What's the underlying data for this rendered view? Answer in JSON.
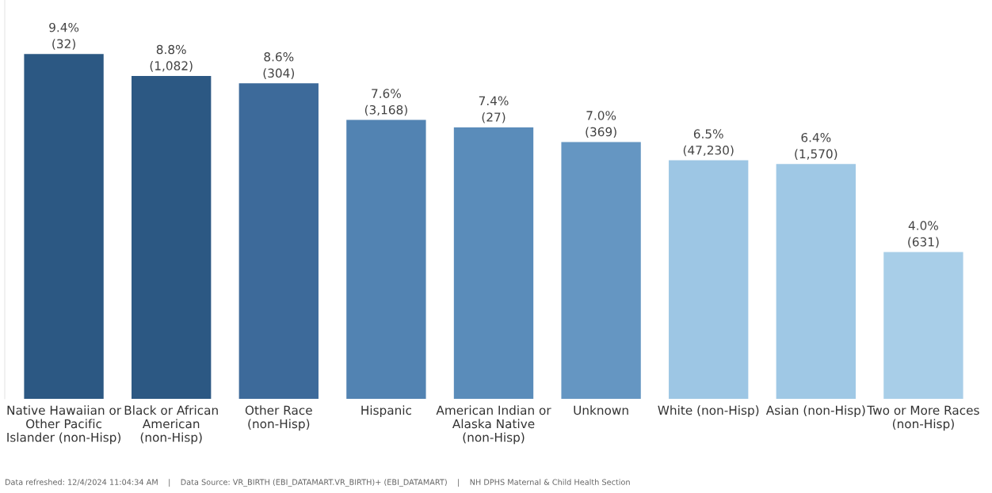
{
  "chart_data": {
    "type": "bar",
    "categories": [
      "Native Hawaiian or\nOther Pacific\nIslander (non-Hisp)",
      "Black or African\nAmerican\n(non-Hisp)",
      "Other Race\n(non-Hisp)",
      "Hispanic",
      "American Indian or\nAlaska Native\n(non-Hisp)",
      "Unknown",
      "White (non-Hisp)",
      "Asian (non-Hisp)",
      "Two or More Races\n(non-Hisp)"
    ],
    "values": [
      9.4,
      8.8,
      8.6,
      7.6,
      7.4,
      7.0,
      6.5,
      6.4,
      4.0
    ],
    "value_labels": [
      "9.4%\n(32)",
      "8.8%\n(1,082)",
      "8.6%\n(304)",
      "7.6%\n(3,168)",
      "7.4%\n(27)",
      "7.0%\n(369)",
      "6.5%\n(47,230)",
      "6.4%\n(1,570)",
      "4.0%\n(631)"
    ],
    "colors": [
      "#2c5883",
      "#2c5883",
      "#3d6a9a",
      "#5283b2",
      "#5a8cba",
      "#6596c2",
      "#9dc6e4",
      "#9fc8e5",
      "#a8cee8"
    ],
    "ylim": [
      0,
      10.87
    ],
    "tick_labels": "x",
    "grid": false,
    "legend": false,
    "annotations": [
      "Data refreshed: 12/4/2024 11:04:34 AM    |    Data Source: VR_BIRTH (EBI_DATAMART.VR_BIRTH)+ (EBI_DATAMART)    |    NH DPHS Maternal & Child Health Section"
    ]
  }
}
